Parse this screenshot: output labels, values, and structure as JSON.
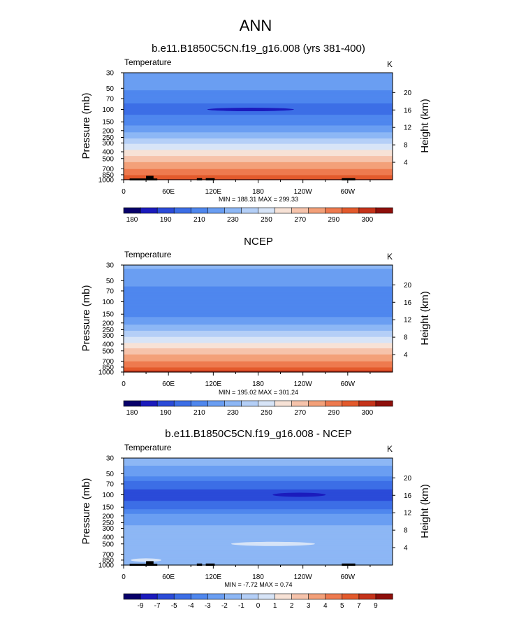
{
  "main_title": "ANN",
  "chart_data": [
    {
      "type": "heatmap",
      "title": "b.e11.B1850C5CN.f19_g16.008 (yrs 381-400)",
      "left_label": "Temperature",
      "right_label": "K",
      "xlabel": "",
      "ylabel": "Pressure (mb)",
      "y2label": "Height (km)",
      "x_ticks": [
        "0",
        "60E",
        "120E",
        "180",
        "120W",
        "60W"
      ],
      "y_ticks": [
        30,
        50,
        70,
        100,
        150,
        200,
        250,
        300,
        400,
        500,
        700,
        850,
        1000
      ],
      "y2_ticks": [
        20,
        16,
        12,
        8,
        4
      ],
      "ylim": [
        1000,
        30
      ],
      "y_scale": "log",
      "minmax_text": "MIN = 188.31  MAX = 299.33",
      "contour_levels": [
        180,
        185,
        190,
        200,
        210,
        220,
        230,
        240,
        250,
        260,
        270,
        280,
        290,
        295,
        300
      ],
      "colorbar_labels": [
        "180",
        "190",
        "210",
        "230",
        "250",
        "270",
        "290",
        "300"
      ],
      "profile": [
        {
          "p": 30,
          "t": 219
        },
        {
          "p": 50,
          "t": 212
        },
        {
          "p": 70,
          "t": 203
        },
        {
          "p": 100,
          "t": 196
        },
        {
          "p": 150,
          "t": 205
        },
        {
          "p": 200,
          "t": 217
        },
        {
          "p": 250,
          "t": 228
        },
        {
          "p": 300,
          "t": 238
        },
        {
          "p": 400,
          "t": 253
        },
        {
          "p": 500,
          "t": 264
        },
        {
          "p": 700,
          "t": 280
        },
        {
          "p": 850,
          "t": 289
        },
        {
          "p": 1000,
          "t": 296
        }
      ],
      "features": [
        "cold core near 100 mb at 180",
        "topography near 20E, 100E-120E, 60W"
      ]
    },
    {
      "type": "heatmap",
      "title": "NCEP",
      "left_label": "Temperature",
      "right_label": "K",
      "xlabel": "",
      "ylabel": "Pressure (mb)",
      "y2label": "Height (km)",
      "x_ticks": [
        "0",
        "60E",
        "120E",
        "180",
        "120W",
        "60W"
      ],
      "y_ticks": [
        30,
        50,
        70,
        100,
        150,
        200,
        250,
        300,
        400,
        500,
        700,
        850,
        1000
      ],
      "y2_ticks": [
        20,
        16,
        12,
        8,
        4
      ],
      "ylim": [
        1000,
        30
      ],
      "y_scale": "log",
      "minmax_text": "MIN = 195.02  MAX = 301.24",
      "contour_levels": [
        180,
        185,
        190,
        200,
        210,
        220,
        230,
        240,
        250,
        260,
        270,
        280,
        290,
        295,
        300
      ],
      "colorbar_labels": [
        "180",
        "190",
        "210",
        "230",
        "250",
        "270",
        "290",
        "300"
      ],
      "profile": [
        {
          "p": 30,
          "t": 222
        },
        {
          "p": 50,
          "t": 214
        },
        {
          "p": 70,
          "t": 207
        },
        {
          "p": 100,
          "t": 202
        },
        {
          "p": 150,
          "t": 207
        },
        {
          "p": 200,
          "t": 217
        },
        {
          "p": 250,
          "t": 228
        },
        {
          "p": 300,
          "t": 237
        },
        {
          "p": 400,
          "t": 252
        },
        {
          "p": 500,
          "t": 264
        },
        {
          "p": 700,
          "t": 280
        },
        {
          "p": 850,
          "t": 290
        },
        {
          "p": 1000,
          "t": 298
        }
      ]
    },
    {
      "type": "heatmap",
      "title": "b.e11.B1850C5CN.f19_g16.008 - NCEP",
      "left_label": "Temperature",
      "right_label": "K",
      "xlabel": "",
      "ylabel": "Pressure (mb)",
      "y2label": "Height (km)",
      "x_ticks": [
        "0",
        "60E",
        "120E",
        "180",
        "120W",
        "60W"
      ],
      "y_ticks": [
        30,
        50,
        70,
        100,
        150,
        200,
        250,
        300,
        400,
        500,
        700,
        850,
        1000
      ],
      "y2_ticks": [
        20,
        16,
        12,
        8,
        4
      ],
      "ylim": [
        1000,
        30
      ],
      "y_scale": "log",
      "minmax_text": "MIN = -7.72  MAX =   0.74",
      "contour_levels": [
        -9,
        -7,
        -5,
        -4,
        -3,
        -2,
        -1,
        0,
        1,
        2,
        3,
        4,
        5,
        7,
        9
      ],
      "colorbar_labels": [
        "-9",
        "-7",
        "-5",
        "-4",
        "-3",
        "-2",
        "-1",
        "0",
        "1",
        "2",
        "3",
        "4",
        "5",
        "7",
        "9"
      ],
      "profile": [
        {
          "p": 30,
          "t": -1.5
        },
        {
          "p": 50,
          "t": -2.5
        },
        {
          "p": 70,
          "t": -4.5
        },
        {
          "p": 100,
          "t": -5.5
        },
        {
          "p": 150,
          "t": -4.5
        },
        {
          "p": 200,
          "t": -2.5
        },
        {
          "p": 250,
          "t": -2.5
        },
        {
          "p": 300,
          "t": -1.5
        },
        {
          "p": 400,
          "t": -1.5
        },
        {
          "p": 500,
          "t": -1.5
        },
        {
          "p": 700,
          "t": -1.5
        },
        {
          "p": 850,
          "t": -1.5
        },
        {
          "p": 1000,
          "t": -1.5
        }
      ],
      "features": [
        "minimum near 100 mb at 120W",
        "topography near 20E, 100E-120E, 60W"
      ]
    }
  ],
  "colors": {
    "temperature_scale": [
      "#08006a",
      "#1b1bbd",
      "#2b4bd8",
      "#3c6ee6",
      "#4f87ee",
      "#6a9ef2",
      "#8db7f5",
      "#b4cff7",
      "#d7e4f7",
      "#f7e2d6",
      "#f6c3ab",
      "#f3a079",
      "#ee7a4f",
      "#e35a2c",
      "#c5331a",
      "#8e0f0b"
    ],
    "topography": "#000000"
  }
}
